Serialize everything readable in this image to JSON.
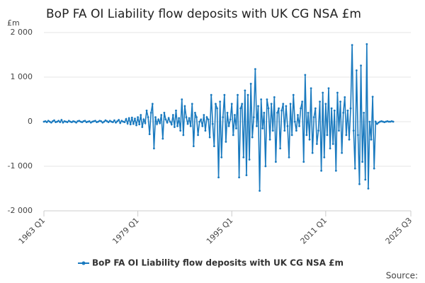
{
  "chart_data": {
    "type": "line",
    "title": "BoP FA OI Liability flow deposits with UK CG NSA £m",
    "y_label": "£m",
    "source": "Source:",
    "x": [
      "1963 Q1",
      "1963 Q2",
      "1963 Q3",
      "1963 Q4",
      "1964 Q1",
      "1964 Q2",
      "1964 Q3",
      "1964 Q4",
      "1965 Q1",
      "1965 Q2",
      "1965 Q3",
      "1965 Q4",
      "1966 Q1",
      "1966 Q2",
      "1966 Q3",
      "1966 Q4",
      "1967 Q1",
      "1967 Q2",
      "1967 Q3",
      "1967 Q4",
      "1968 Q1",
      "1968 Q2",
      "1968 Q3",
      "1968 Q4",
      "1969 Q1",
      "1969 Q2",
      "1969 Q3",
      "1969 Q4",
      "1970 Q1",
      "1970 Q2",
      "1970 Q3",
      "1970 Q4",
      "1971 Q1",
      "1971 Q2",
      "1971 Q3",
      "1971 Q4",
      "1972 Q1",
      "1972 Q2",
      "1972 Q3",
      "1972 Q4",
      "1973 Q1",
      "1973 Q2",
      "1973 Q3",
      "1973 Q4",
      "1974 Q1",
      "1974 Q2",
      "1974 Q3",
      "1974 Q4",
      "1975 Q1",
      "1975 Q2",
      "1975 Q3",
      "1975 Q4",
      "1976 Q1",
      "1976 Q2",
      "1976 Q3",
      "1976 Q4",
      "1977 Q1",
      "1977 Q2",
      "1977 Q3",
      "1977 Q4",
      "1978 Q1",
      "1978 Q2",
      "1978 Q3",
      "1978 Q4",
      "1979 Q1",
      "1979 Q2",
      "1979 Q3",
      "1979 Q4",
      "1980 Q1",
      "1980 Q2",
      "1980 Q3",
      "1980 Q4",
      "1981 Q1",
      "1981 Q2",
      "1981 Q3",
      "1981 Q4",
      "1982 Q1",
      "1982 Q2",
      "1982 Q3",
      "1982 Q4",
      "1983 Q1",
      "1983 Q2",
      "1983 Q3",
      "1983 Q4",
      "1984 Q1",
      "1984 Q2",
      "1984 Q3",
      "1984 Q4",
      "1985 Q1",
      "1985 Q2",
      "1985 Q3",
      "1985 Q4",
      "1986 Q1",
      "1986 Q2",
      "1986 Q3",
      "1986 Q4",
      "1987 Q1",
      "1987 Q2",
      "1987 Q3",
      "1987 Q4",
      "1988 Q1",
      "1988 Q2",
      "1988 Q3",
      "1988 Q4",
      "1989 Q1",
      "1989 Q2",
      "1989 Q3",
      "1989 Q4",
      "1990 Q1",
      "1990 Q2",
      "1990 Q3",
      "1990 Q4",
      "1991 Q1",
      "1991 Q2",
      "1991 Q3",
      "1991 Q4",
      "1992 Q1",
      "1992 Q2",
      "1992 Q3",
      "1992 Q4",
      "1993 Q1",
      "1993 Q2",
      "1993 Q3",
      "1993 Q4",
      "1994 Q1",
      "1994 Q2",
      "1994 Q3",
      "1994 Q4",
      "1995 Q1",
      "1995 Q2",
      "1995 Q3",
      "1995 Q4",
      "1996 Q1",
      "1996 Q2",
      "1996 Q3",
      "1996 Q4",
      "1997 Q1",
      "1997 Q2",
      "1997 Q3",
      "1997 Q4",
      "1998 Q1",
      "1998 Q2",
      "1998 Q3",
      "1998 Q4",
      "1999 Q1",
      "1999 Q2",
      "1999 Q3",
      "1999 Q4",
      "2000 Q1",
      "2000 Q2",
      "2000 Q3",
      "2000 Q4",
      "2001 Q1",
      "2001 Q2",
      "2001 Q3",
      "2001 Q4",
      "2002 Q1",
      "2002 Q2",
      "2002 Q3",
      "2002 Q4",
      "2003 Q1",
      "2003 Q2",
      "2003 Q3",
      "2003 Q4",
      "2004 Q1",
      "2004 Q2",
      "2004 Q3",
      "2004 Q4",
      "2005 Q1",
      "2005 Q2",
      "2005 Q3",
      "2005 Q4",
      "2006 Q1",
      "2006 Q2",
      "2006 Q3",
      "2006 Q4",
      "2007 Q1",
      "2007 Q2",
      "2007 Q3",
      "2007 Q4",
      "2008 Q1",
      "2008 Q2",
      "2008 Q3",
      "2008 Q4",
      "2009 Q1",
      "2009 Q2",
      "2009 Q3",
      "2009 Q4",
      "2010 Q1",
      "2010 Q2",
      "2010 Q3",
      "2010 Q4",
      "2011 Q1",
      "2011 Q2",
      "2011 Q3",
      "2011 Q4",
      "2012 Q1",
      "2012 Q2",
      "2012 Q3",
      "2012 Q4",
      "2013 Q1",
      "2013 Q2",
      "2013 Q3",
      "2013 Q4",
      "2014 Q1",
      "2014 Q2",
      "2014 Q3",
      "2014 Q4",
      "2015 Q1",
      "2015 Q2",
      "2015 Q3",
      "2015 Q4",
      "2016 Q1",
      "2016 Q2",
      "2016 Q3",
      "2016 Q4",
      "2017 Q1",
      "2017 Q2",
      "2017 Q3",
      "2017 Q4",
      "2018 Q1",
      "2018 Q2",
      "2018 Q3",
      "2018 Q4",
      "2019 Q1",
      "2019 Q2",
      "2019 Q3",
      "2019 Q4",
      "2020 Q1",
      "2020 Q2",
      "2020 Q3",
      "2020 Q4",
      "2021 Q1",
      "2021 Q2",
      "2021 Q3",
      "2021 Q4",
      "2022 Q1",
      "2022 Q2",
      "2022 Q3"
    ],
    "series": [
      {
        "name": "BoP FA OI Liability flow deposits with UK CG NSA £m",
        "color": "#1a7abf",
        "values": [
          0,
          10,
          -10,
          20,
          0,
          -20,
          10,
          30,
          -10,
          0,
          20,
          -10,
          40,
          -20,
          10,
          0,
          -10,
          20,
          0,
          -10,
          10,
          0,
          -20,
          10,
          20,
          0,
          -10,
          10,
          20,
          -10,
          0,
          10,
          -20,
          0,
          10,
          20,
          -10,
          0,
          20,
          10,
          -20,
          0,
          30,
          10,
          -10,
          20,
          0,
          -10,
          30,
          -20,
          10,
          40,
          -30,
          20,
          0,
          -10,
          60,
          -40,
          80,
          -60,
          90,
          -50,
          70,
          -80,
          100,
          -60,
          150,
          -120,
          50,
          -30,
          250,
          100,
          -280,
          200,
          400,
          -600,
          100,
          -50,
          50,
          -30,
          150,
          -380,
          200,
          50,
          -20,
          80,
          0,
          -60,
          150,
          -120,
          250,
          -100,
          80,
          -200,
          500,
          -300,
          350,
          100,
          -50,
          80,
          -100,
          400,
          -550,
          200,
          100,
          -300,
          0,
          50,
          -100,
          150,
          -200,
          100,
          50,
          -350,
          600,
          -50,
          -550,
          400,
          300,
          -1250,
          450,
          -800,
          100,
          600,
          -450,
          200,
          -100,
          50,
          400,
          -300,
          150,
          -150,
          600,
          -1250,
          300,
          400,
          -800,
          700,
          -1200,
          600,
          -850,
          850,
          -350,
          100,
          1180,
          -100,
          350,
          -1550,
          500,
          -150,
          200,
          -1000,
          500,
          300,
          -400,
          400,
          -200,
          550,
          -900,
          200,
          300,
          -600,
          250,
          400,
          -200,
          350,
          -100,
          -800,
          400,
          -300,
          600,
          0,
          -200,
          150,
          -100,
          300,
          450,
          -900,
          1050,
          -300,
          200,
          -400,
          750,
          -700,
          100,
          300,
          -500,
          -200,
          450,
          -1100,
          650,
          -800,
          400,
          -300,
          750,
          -600,
          300,
          -500,
          250,
          -1100,
          650,
          -200,
          450,
          -700,
          200,
          550,
          -300,
          250,
          -400,
          300,
          1720,
          -200,
          -1050,
          1150,
          -300,
          -1400,
          1260,
          -900,
          200,
          -1300,
          1740,
          -1500,
          0,
          -400,
          560,
          -1050,
          0,
          -50,
          -20,
          0,
          10,
          0,
          -10,
          0,
          10,
          0,
          0,
          10,
          0
        ]
      }
    ],
    "xticks": [
      "1963 Q1",
      "1979 Q1",
      "1995 Q1",
      "2011 Q1",
      "2025 Q3"
    ],
    "ylim": [
      -2000,
      2000
    ],
    "yticks": [
      {
        "value": -2000,
        "label": "-2 000"
      },
      {
        "value": -1000,
        "label": "-1 000"
      },
      0,
      {
        "value": 1000,
        "label": "1 000"
      },
      {
        "value": 2000,
        "label": "2 000"
      }
    ],
    "grid": true,
    "legend": "bottom"
  }
}
